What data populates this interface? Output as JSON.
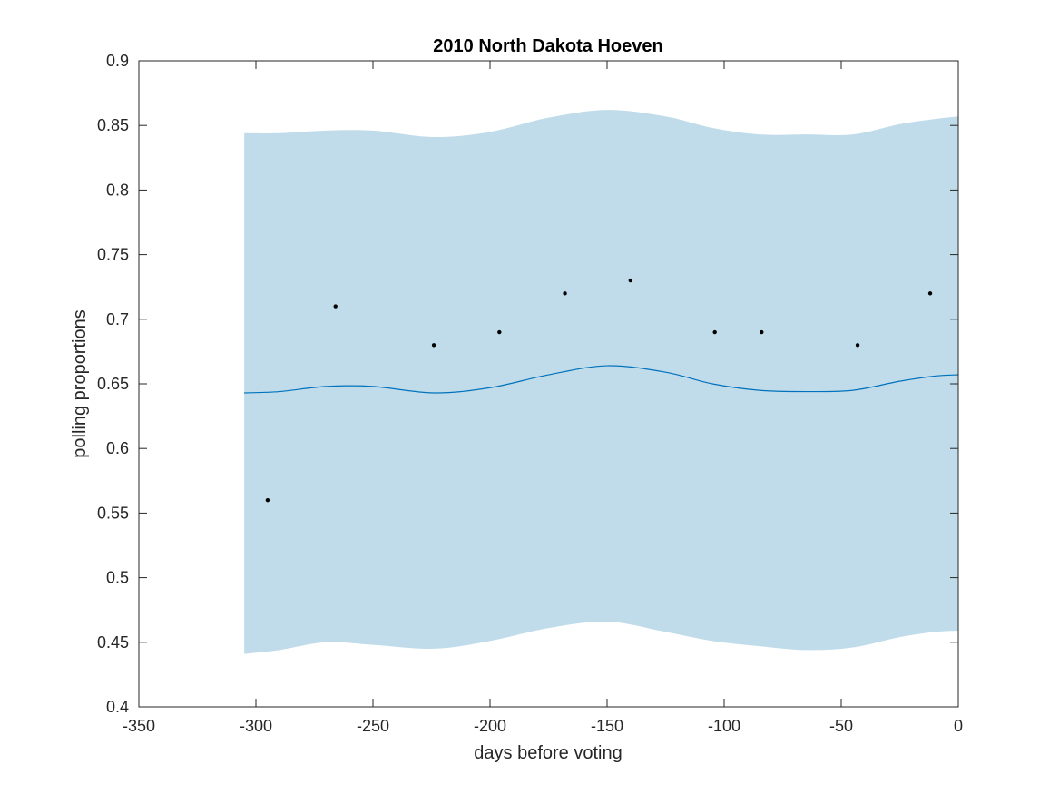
{
  "chart_data": {
    "type": "line",
    "title": "2010 North Dakota Hoeven",
    "xlabel": "days before voting",
    "ylabel": "polling proportions",
    "xlim": [
      -350,
      0
    ],
    "ylim": [
      0.4,
      0.9
    ],
    "x_ticks": [
      -350,
      -300,
      -250,
      -200,
      -150,
      -100,
      -50,
      0
    ],
    "x_tick_labels": [
      "-350",
      "-300",
      "-250",
      "-200",
      "-150",
      "-100",
      "-50",
      "0"
    ],
    "y_ticks": [
      0.4,
      0.45,
      0.5,
      0.55,
      0.6,
      0.65,
      0.7,
      0.75,
      0.8,
      0.85,
      0.9
    ],
    "y_tick_labels": [
      "0.4",
      "0.45",
      "0.5",
      "0.55",
      "0.6",
      "0.65",
      "0.7",
      "0.75",
      "0.8",
      "0.85",
      "0.9"
    ],
    "grid": false,
    "legend": "none",
    "colors": {
      "band": "#c0dcea",
      "line": "#0072bd",
      "points": "#000000",
      "axes": "#262626"
    },
    "series": [
      {
        "type": "area",
        "x": [
          -305,
          -290,
          -270,
          -250,
          -224,
          -200,
          -175,
          -150,
          -125,
          -105,
          -85,
          -65,
          -45,
          -25,
          -10,
          0
        ],
        "upper": [
          0.844,
          0.844,
          0.846,
          0.846,
          0.841,
          0.845,
          0.856,
          0.862,
          0.857,
          0.848,
          0.843,
          0.843,
          0.843,
          0.851,
          0.855,
          0.857
        ],
        "lower": [
          0.441,
          0.444,
          0.45,
          0.448,
          0.445,
          0.451,
          0.461,
          0.466,
          0.458,
          0.451,
          0.447,
          0.444,
          0.446,
          0.454,
          0.458,
          0.459
        ]
      },
      {
        "type": "line",
        "x": [
          -305,
          -290,
          -270,
          -250,
          -224,
          -200,
          -175,
          -150,
          -125,
          -105,
          -85,
          -65,
          -45,
          -25,
          -10,
          0
        ],
        "values": [
          0.643,
          0.644,
          0.648,
          0.648,
          0.643,
          0.647,
          0.657,
          0.664,
          0.659,
          0.65,
          0.645,
          0.644,
          0.645,
          0.652,
          0.656,
          0.657
        ]
      },
      {
        "type": "scatter",
        "x": [
          -295,
          -266,
          -224,
          -196,
          -168,
          -140,
          -104,
          -84,
          -43,
          -12
        ],
        "values": [
          0.56,
          0.71,
          0.68,
          0.69,
          0.72,
          0.73,
          0.69,
          0.69,
          0.68,
          0.72
        ]
      }
    ]
  }
}
